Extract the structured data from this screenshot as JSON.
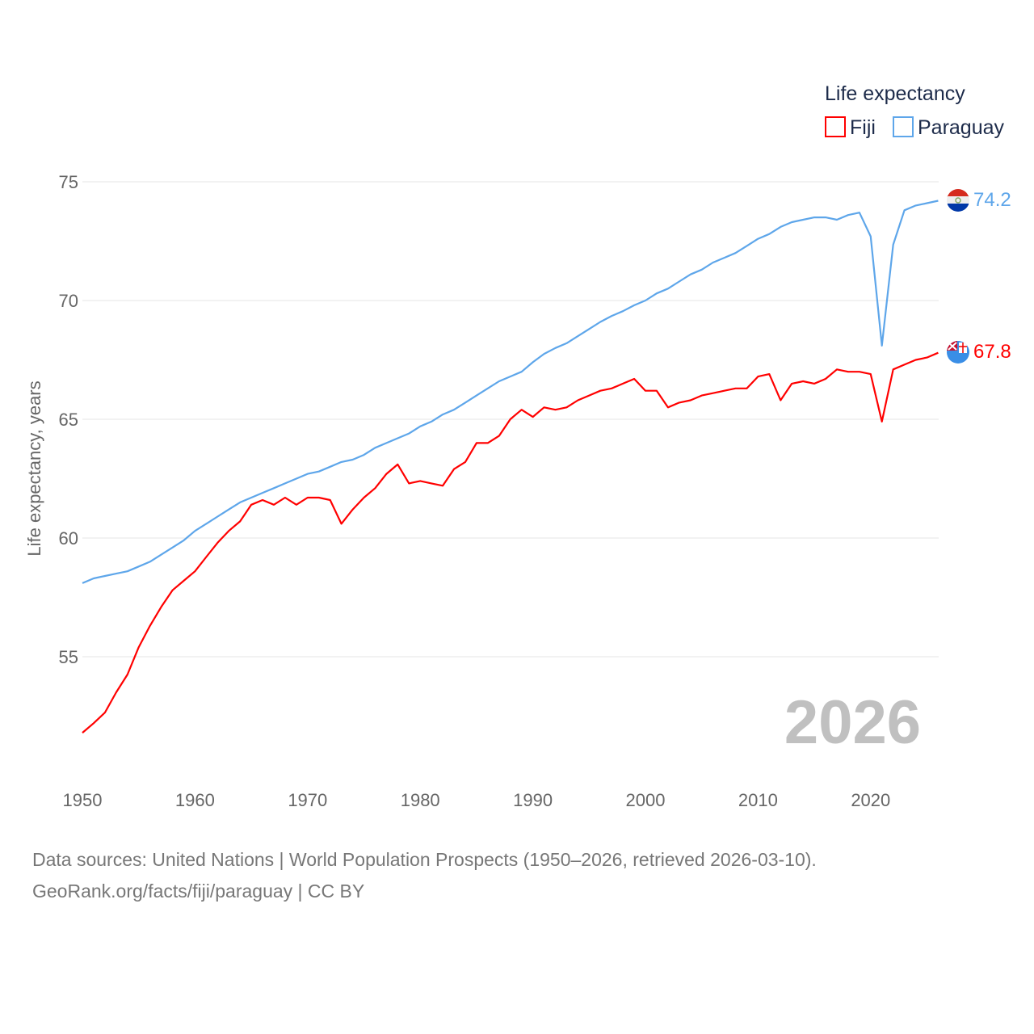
{
  "chart_data": {
    "type": "line",
    "title": "",
    "ylabel": "Life expectancy, years",
    "xlabel": "",
    "ylim": [
      51,
      75
    ],
    "xlim": [
      1950,
      2026
    ],
    "grid": true,
    "yticks": [
      "75",
      "70",
      "65",
      "60",
      "55"
    ],
    "ytick_values": [
      75,
      70,
      65,
      60,
      55
    ],
    "xticks": [
      "1950",
      "1960",
      "1970",
      "1980",
      "1990",
      "2000",
      "2010",
      "2020"
    ],
    "xtick_values": [
      1950,
      1960,
      1970,
      1980,
      1990,
      2000,
      2010,
      2020
    ],
    "legend": {
      "title": "Life expectancy",
      "position": "top-right"
    },
    "year_label": "2026",
    "x_start": 1950,
    "series": [
      {
        "name": "Fiji",
        "color": "#ff0000",
        "end_label": "67.8",
        "values": [
          51.8,
          52.2,
          52.65,
          53.5,
          54.25,
          55.4,
          56.3,
          57.1,
          57.8,
          58.2,
          58.6,
          59.2,
          59.8,
          60.3,
          60.7,
          61.4,
          61.6,
          61.4,
          61.7,
          61.4,
          61.7,
          61.7,
          61.6,
          60.6,
          61.2,
          61.7,
          62.1,
          62.7,
          63.1,
          62.3,
          62.4,
          62.3,
          62.2,
          62.9,
          63.2,
          64.0,
          64.0,
          64.3,
          65.0,
          65.4,
          65.1,
          65.5,
          65.4,
          65.5,
          65.8,
          66.0,
          66.2,
          66.3,
          66.5,
          66.7,
          66.2,
          66.2,
          65.5,
          65.7,
          65.8,
          66.0,
          66.1,
          66.2,
          66.3,
          66.3,
          66.8,
          66.9,
          65.8,
          66.5,
          66.6,
          66.5,
          66.7,
          67.1,
          67.0,
          67.0,
          66.9,
          64.9,
          67.1,
          67.3,
          67.5,
          67.6,
          67.8
        ]
      },
      {
        "name": "Paraguay",
        "color": "#5ea6ea",
        "end_label": "74.2",
        "values": [
          58.1,
          58.3,
          58.4,
          58.5,
          58.6,
          58.8,
          59.0,
          59.3,
          59.6,
          59.9,
          60.3,
          60.6,
          60.9,
          61.2,
          61.5,
          61.7,
          61.9,
          62.1,
          62.3,
          62.5,
          62.7,
          62.8,
          63.0,
          63.2,
          63.3,
          63.5,
          63.8,
          64.0,
          64.2,
          64.4,
          64.7,
          64.9,
          65.2,
          65.4,
          65.7,
          66.0,
          66.3,
          66.6,
          66.8,
          67.0,
          67.4,
          67.75,
          68.0,
          68.2,
          68.5,
          68.8,
          69.1,
          69.35,
          69.55,
          69.8,
          70.0,
          70.3,
          70.5,
          70.8,
          71.1,
          71.3,
          71.6,
          71.8,
          72.0,
          72.3,
          72.6,
          72.8,
          73.1,
          73.3,
          73.4,
          73.5,
          73.5,
          73.4,
          73.6,
          73.7,
          72.7,
          68.1,
          72.35,
          73.8,
          74.0,
          74.1,
          74.2
        ]
      }
    ]
  },
  "footer": {
    "line1": "Data sources: United Nations | World Population Prospects (1950–2026, retrieved 2026-03-10).",
    "line2": "GeoRank.org/facts/fiji/paraguay | CC BY"
  }
}
